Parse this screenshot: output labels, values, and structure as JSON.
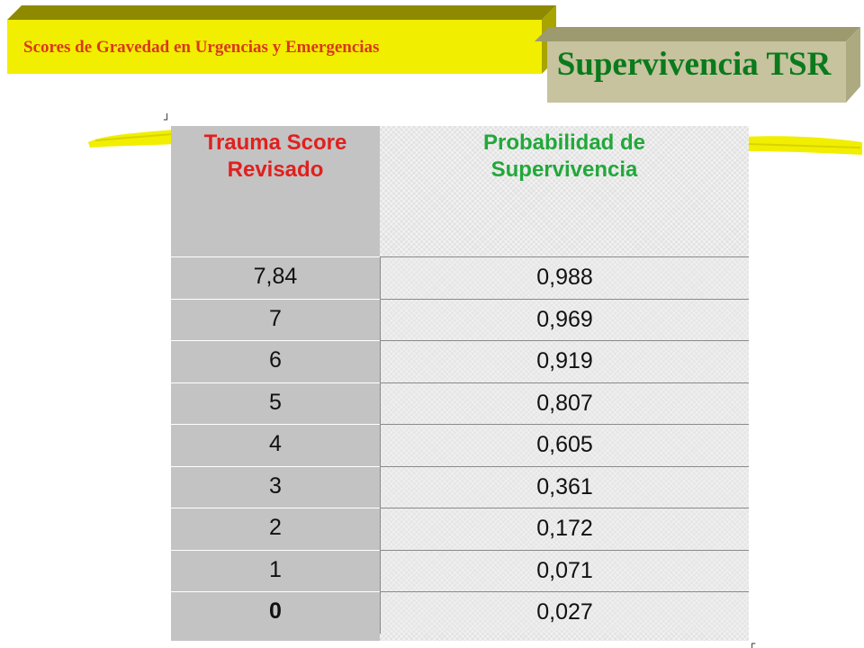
{
  "header": {
    "subtitle": "Scores de Gravedad en Urgencias y Emergencias",
    "title": "Supervivencia TSR"
  },
  "colors": {
    "banner_fill": "#f1ee00",
    "banner_dark": "#9a9600",
    "title_banner_fill": "#c6c39e",
    "title_color": "#0a7a1c",
    "subtitle_color": "#d9381e",
    "left_header_color": "#e0201e",
    "right_header_color": "#22a83a"
  },
  "table": {
    "headers": {
      "left": [
        "Trauma Score",
        "Revisado"
      ],
      "right": [
        "Probabilidad de",
        "Supervivencia"
      ]
    },
    "rows": [
      {
        "score": "7,84",
        "probability": "0,988",
        "bold": false
      },
      {
        "score": "7",
        "probability": "0,969",
        "bold": false
      },
      {
        "score": "6",
        "probability": "0,919",
        "bold": false
      },
      {
        "score": "5",
        "probability": "0,807",
        "bold": false
      },
      {
        "score": "4",
        "probability": "0,605",
        "bold": false
      },
      {
        "score": "3",
        "probability": "0,361",
        "bold": false
      },
      {
        "score": "2",
        "probability": "0,172",
        "bold": false
      },
      {
        "score": "1",
        "probability": "0,071",
        "bold": false
      },
      {
        "score": "0",
        "probability": "0,027",
        "bold": true
      }
    ]
  }
}
